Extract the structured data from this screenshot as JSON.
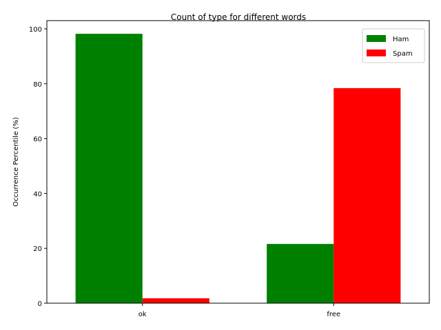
{
  "chart_data": {
    "type": "bar",
    "title": "Count of type for different words",
    "xlabel": "",
    "ylabel": "Occurrence Percentile (%)",
    "categories": [
      "ok",
      "free"
    ],
    "series": [
      {
        "name": "Ham",
        "color": "#008000",
        "values": [
          98.2,
          21.6
        ]
      },
      {
        "name": "Spam",
        "color": "#ff0000",
        "values": [
          1.8,
          78.4
        ]
      }
    ],
    "ylim": [
      0,
      103
    ],
    "yticks": [
      0,
      20,
      40,
      60,
      80,
      100
    ],
    "grid": false,
    "legend_position": "top-right"
  }
}
